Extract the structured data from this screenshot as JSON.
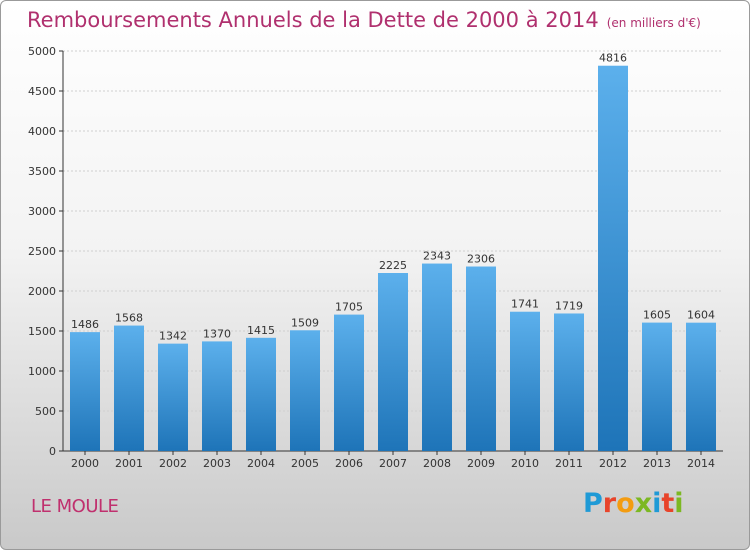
{
  "header": {
    "title": "Remboursements Annuels de la Dette de 2000 à 2014",
    "unit": "(en milliers d'€)"
  },
  "footer": {
    "commune": "LE MOULE",
    "logo": "Proxiti"
  },
  "colors": {
    "title": "#b0306e",
    "bar_top": "#5cb0ec",
    "bar_bottom": "#1e74b8"
  },
  "chart_data": {
    "type": "bar",
    "title": "Remboursements Annuels de la Dette de 2000 à 2014",
    "xlabel": "",
    "ylabel": "",
    "categories": [
      "2000",
      "2001",
      "2002",
      "2003",
      "2004",
      "2005",
      "2006",
      "2007",
      "2008",
      "2009",
      "2010",
      "2011",
      "2012",
      "2013",
      "2014"
    ],
    "values": [
      1486,
      1568,
      1342,
      1370,
      1415,
      1509,
      1705,
      2225,
      2343,
      2306,
      1741,
      1719,
      4816,
      1605,
      1604
    ],
    "ylim": [
      0,
      5000
    ],
    "yticks": [
      0,
      500,
      1000,
      1500,
      2000,
      2500,
      3000,
      3500,
      4000,
      4500,
      5000
    ],
    "grid": true,
    "data_labels": true
  }
}
